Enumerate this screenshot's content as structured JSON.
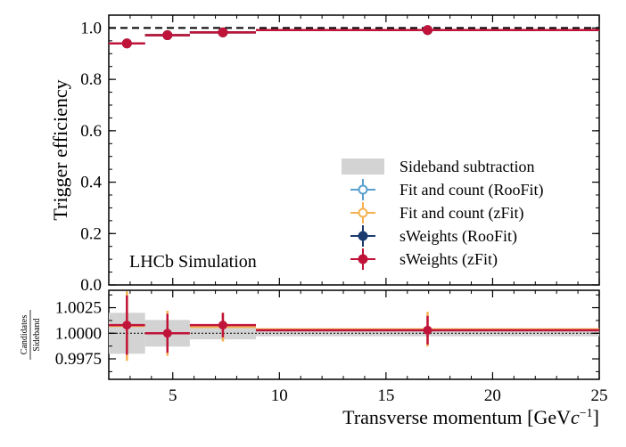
{
  "chart_data": [
    {
      "type": "errorbar",
      "panel": "top",
      "ylabel": "Trigger efficiency",
      "ylim": [
        0.0,
        1.05
      ],
      "yticks": [
        "0.0",
        "0.2",
        "0.4",
        "0.6",
        "0.8",
        "1.0"
      ],
      "ytick_values": [
        0.0,
        0.2,
        0.4,
        0.6,
        0.8,
        1.0
      ],
      "xlim": [
        2,
        25
      ],
      "reference_line": 1.0,
      "annotation": "LHCb Simulation",
      "bins": [
        [
          2,
          3.7
        ],
        [
          3.7,
          5.8
        ],
        [
          5.8,
          8.9
        ],
        [
          8.9,
          25
        ]
      ],
      "series": [
        {
          "name": "Sideband subtraction",
          "color": "#d3d3d3",
          "x": [
            2.85,
            4.75,
            7.35,
            16.95
          ],
          "values": [
            0.94,
            0.972,
            0.983,
            0.992
          ]
        },
        {
          "name": "Fit and count (RooFit)",
          "color": "#5aa0cf",
          "x": [
            2.85,
            4.75,
            7.35,
            16.95
          ],
          "values": [
            0.94,
            0.972,
            0.983,
            0.992
          ]
        },
        {
          "name": "Fit and count (zFit)",
          "color": "#f5b14f",
          "x": [
            2.85,
            4.75,
            7.35,
            16.95
          ],
          "values": [
            0.94,
            0.972,
            0.983,
            0.992
          ]
        },
        {
          "name": "sWeights (RooFit)",
          "color": "#1b3b6f",
          "x": [
            2.85,
            4.75,
            7.35,
            16.95
          ],
          "values": [
            0.94,
            0.972,
            0.983,
            0.992
          ]
        },
        {
          "name": "sWeights (zFit)",
          "color": "#c0133a",
          "x": [
            2.85,
            4.75,
            7.35,
            16.95
          ],
          "values": [
            0.94,
            0.972,
            0.983,
            0.992
          ]
        }
      ]
    },
    {
      "type": "errorbar",
      "panel": "ratio",
      "ylabel_num": "Candidates",
      "ylabel_den": "Sideband",
      "xlabel": "Transverse momentum [GeV",
      "xlabel_c": "c",
      "xlabel_exp": "−1",
      "xlabel_close": "]",
      "ylim": [
        0.9955,
        1.0042
      ],
      "yticks": [
        "0.9975",
        "1.0000",
        "1.0025"
      ],
      "ytick_values": [
        0.9975,
        1.0,
        1.0025
      ],
      "xticks": [
        "5",
        "10",
        "15",
        "20",
        "25"
      ],
      "xtick_values": [
        5,
        10,
        15,
        20,
        25
      ],
      "xlim": [
        2,
        25
      ],
      "bins": [
        [
          2,
          3.7
        ],
        [
          3.7,
          5.8
        ],
        [
          5.8,
          8.9
        ],
        [
          8.9,
          25
        ]
      ],
      "band": {
        "name": "Sideband subtraction",
        "halfwidth": [
          0.002,
          0.0013,
          0.0006,
          0.0003
        ]
      },
      "series": [
        {
          "name": "Fit and count (zFit)",
          "color": "#f5b14f",
          "x": [
            2.85,
            4.75,
            7.35,
            16.95
          ],
          "values": [
            1.0007,
            1.0,
            1.0006,
            1.0004
          ],
          "errors": [
            0.0034,
            0.0022,
            0.0014,
            0.0017
          ]
        },
        {
          "name": "sWeights (zFit)",
          "color": "#c0133a",
          "x": [
            2.85,
            4.75,
            7.35,
            16.95
          ],
          "values": [
            1.0008,
            1.0,
            1.0008,
            1.0003
          ],
          "errors": [
            0.0029,
            0.0019,
            0.0012,
            0.0014
          ]
        }
      ]
    }
  ]
}
